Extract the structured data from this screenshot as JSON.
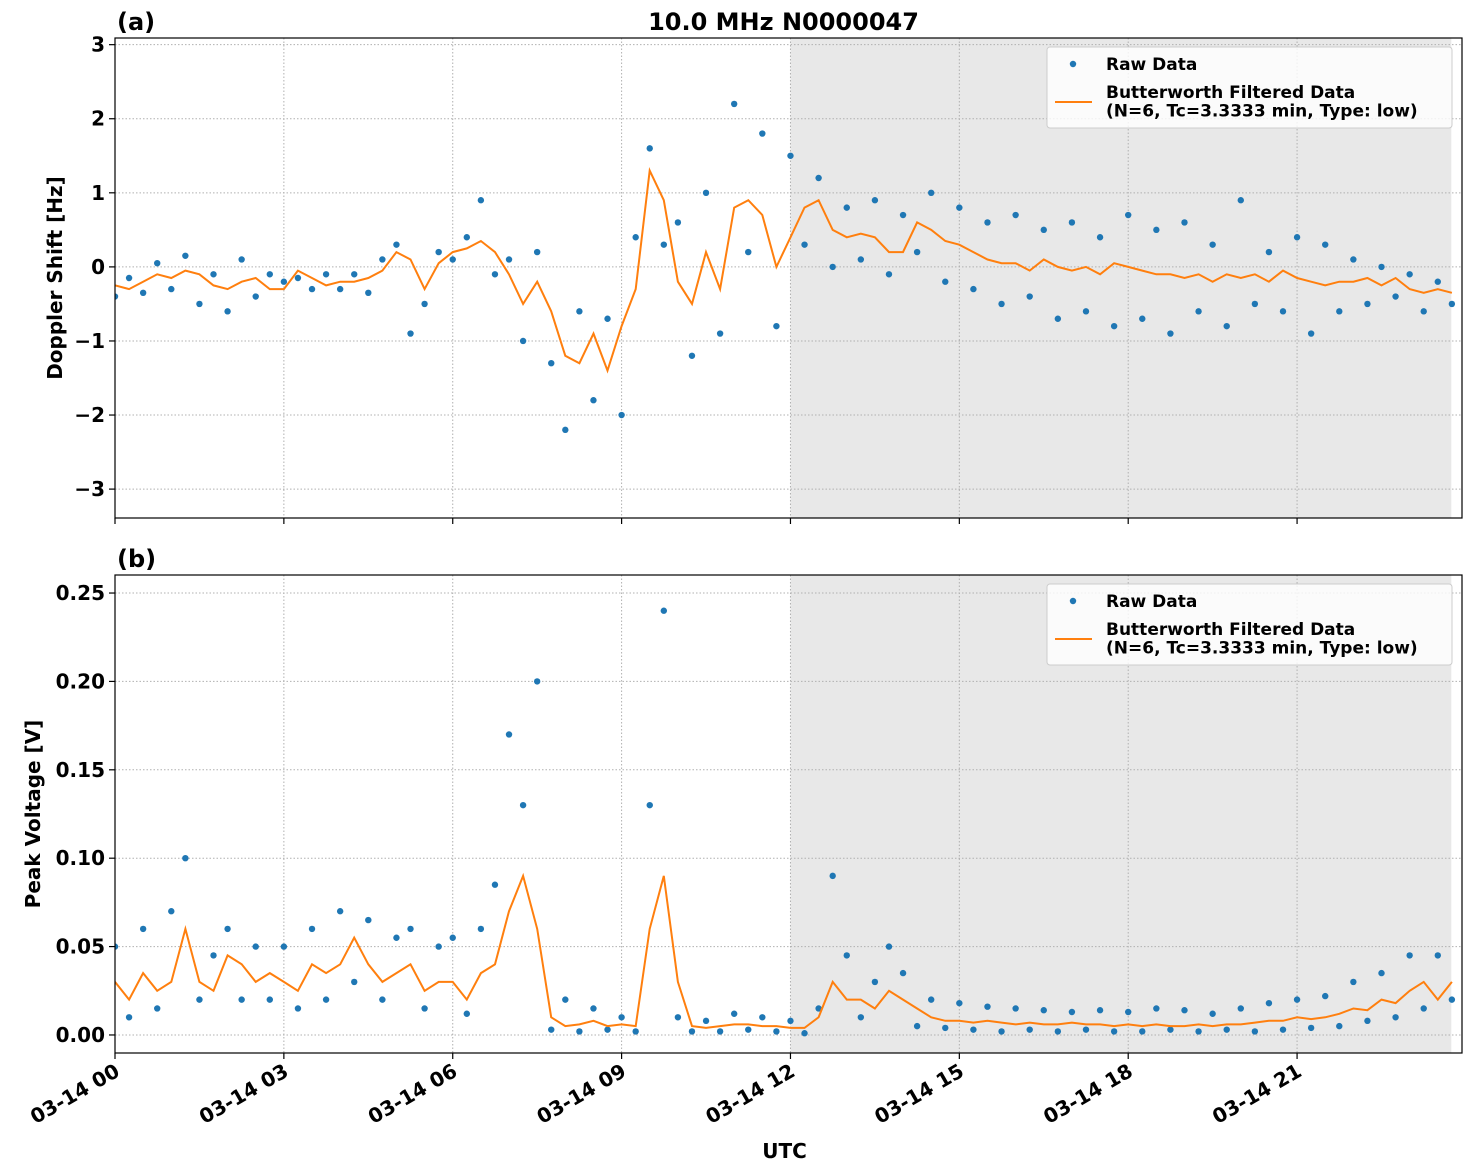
{
  "chart_data": [
    {
      "type": "line",
      "title": "10.0 MHz N0000047",
      "panel": "(a)",
      "ylabel": "Doppler Shift [Hz]",
      "x": [
        0,
        0.25,
        0.5,
        0.75,
        1,
        1.25,
        1.5,
        1.75,
        2,
        2.25,
        2.5,
        2.75,
        3,
        3.25,
        3.5,
        3.75,
        4,
        4.25,
        4.5,
        4.75,
        5,
        5.25,
        5.5,
        5.75,
        6,
        6.25,
        6.5,
        6.75,
        7,
        7.25,
        7.5,
        7.75,
        8,
        8.25,
        8.5,
        8.75,
        9,
        9.25,
        9.5,
        9.75,
        10,
        10.25,
        10.5,
        10.75,
        11,
        11.25,
        11.5,
        11.75,
        12,
        12.25,
        12.5,
        12.75,
        13,
        13.25,
        13.5,
        13.75,
        14,
        14.25,
        14.5,
        14.75,
        15,
        15.25,
        15.5,
        15.75,
        16,
        16.25,
        16.5,
        16.75,
        17,
        17.25,
        17.5,
        17.75,
        18,
        18.25,
        18.5,
        18.75,
        19,
        19.25,
        19.5,
        19.75,
        20,
        20.25,
        20.5,
        20.75,
        21,
        21.25,
        21.5,
        21.75,
        22,
        22.25,
        22.5,
        22.75,
        23,
        23.25,
        23.5,
        23.75
      ],
      "series": [
        {
          "name": "Raw Data",
          "color": "#1f77b4",
          "marker": "dot",
          "values": [
            -0.4,
            -0.15,
            -0.35,
            0.05,
            -0.3,
            0.15,
            -0.5,
            -0.1,
            -0.6,
            0.1,
            -0.4,
            -0.1,
            -0.2,
            -0.15,
            -0.3,
            -0.1,
            -0.3,
            -0.1,
            -0.35,
            0.1,
            0.3,
            -0.9,
            -0.5,
            0.2,
            0.1,
            0.4,
            0.9,
            -0.1,
            0.1,
            -1.0,
            0.2,
            -1.3,
            -2.2,
            -0.6,
            -1.8,
            -0.7,
            -2.0,
            0.4,
            1.6,
            0.3,
            0.6,
            -1.2,
            1.0,
            -0.9,
            2.2,
            0.2,
            1.8,
            -0.8,
            1.5,
            0.3,
            1.2,
            0.0,
            0.8,
            0.1,
            0.9,
            -0.1,
            0.7,
            0.2,
            1.0,
            -0.2,
            0.8,
            -0.3,
            0.6,
            -0.5,
            0.7,
            -0.4,
            0.5,
            -0.7,
            0.6,
            -0.6,
            0.4,
            -0.8,
            0.7,
            -0.7,
            0.5,
            -0.9,
            0.6,
            -0.6,
            0.3,
            -0.8,
            0.9,
            -0.5,
            0.2,
            -0.6,
            0.4,
            -0.9,
            0.3,
            -0.6,
            0.1,
            -0.5,
            0.0,
            -0.4,
            -0.1,
            -0.6,
            -0.2,
            -0.5
          ]
        },
        {
          "name": "Butterworth Filtered Data\n(N=6, Tc=3.3333 min, Type: low)",
          "color": "#ff7f0e",
          "marker": "line",
          "values": [
            -0.25,
            -0.3,
            -0.2,
            -0.1,
            -0.15,
            -0.05,
            -0.1,
            -0.25,
            -0.3,
            -0.2,
            -0.15,
            -0.3,
            -0.3,
            -0.05,
            -0.15,
            -0.25,
            -0.2,
            -0.2,
            -0.15,
            -0.05,
            0.2,
            0.1,
            -0.3,
            0.05,
            0.2,
            0.25,
            0.35,
            0.2,
            -0.1,
            -0.5,
            -0.2,
            -0.6,
            -1.2,
            -1.3,
            -0.9,
            -1.4,
            -0.8,
            -0.3,
            1.3,
            0.9,
            -0.2,
            -0.5,
            0.2,
            -0.3,
            0.8,
            0.9,
            0.7,
            0.0,
            0.4,
            0.8,
            0.9,
            0.5,
            0.4,
            0.45,
            0.4,
            0.2,
            0.2,
            0.6,
            0.5,
            0.35,
            0.3,
            0.2,
            0.1,
            0.05,
            0.05,
            -0.05,
            0.1,
            0.0,
            -0.05,
            0.0,
            -0.1,
            0.05,
            0.0,
            -0.05,
            -0.1,
            -0.1,
            -0.15,
            -0.1,
            -0.2,
            -0.1,
            -0.15,
            -0.1,
            -0.2,
            -0.05,
            -0.15,
            -0.2,
            -0.25,
            -0.2,
            -0.2,
            -0.15,
            -0.25,
            -0.15,
            -0.3,
            -0.35,
            -0.3,
            -0.35
          ]
        }
      ],
      "xlim": [
        0,
        23.93
      ],
      "xticks": [
        0,
        3,
        6,
        9,
        12,
        15,
        18,
        21
      ],
      "ylim": [
        -3.39,
        3.09
      ],
      "yticks": [
        {
          "value": -3,
          "label": "−3"
        },
        {
          "value": -2,
          "label": "−2"
        },
        {
          "value": -1,
          "label": "−1"
        },
        0,
        1,
        2,
        3
      ],
      "shade": [
        12,
        23.74
      ],
      "grid": true,
      "legend": "upper right"
    },
    {
      "type": "line",
      "panel": "(b)",
      "ylabel": "Peak Voltage [V]",
      "xlabel": "UTC",
      "x": [
        0,
        0.25,
        0.5,
        0.75,
        1,
        1.25,
        1.5,
        1.75,
        2,
        2.25,
        2.5,
        2.75,
        3,
        3.25,
        3.5,
        3.75,
        4,
        4.25,
        4.5,
        4.75,
        5,
        5.25,
        5.5,
        5.75,
        6,
        6.25,
        6.5,
        6.75,
        7,
        7.25,
        7.5,
        7.75,
        8,
        8.25,
        8.5,
        8.75,
        9,
        9.25,
        9.5,
        9.75,
        10,
        10.25,
        10.5,
        10.75,
        11,
        11.25,
        11.5,
        11.75,
        12,
        12.25,
        12.5,
        12.75,
        13,
        13.25,
        13.5,
        13.75,
        14,
        14.25,
        14.5,
        14.75,
        15,
        15.25,
        15.5,
        15.75,
        16,
        16.25,
        16.5,
        16.75,
        17,
        17.25,
        17.5,
        17.75,
        18,
        18.25,
        18.5,
        18.75,
        19,
        19.25,
        19.5,
        19.75,
        20,
        20.25,
        20.5,
        20.75,
        21,
        21.25,
        21.5,
        21.75,
        22,
        22.25,
        22.5,
        22.75,
        23,
        23.25,
        23.5,
        23.75
      ],
      "series": [
        {
          "name": "Raw Data",
          "color": "#1f77b4",
          "marker": "dot",
          "values": [
            0.05,
            0.01,
            0.06,
            0.015,
            0.07,
            0.1,
            0.02,
            0.045,
            0.06,
            0.02,
            0.05,
            0.02,
            0.05,
            0.015,
            0.06,
            0.02,
            0.07,
            0.03,
            0.065,
            0.02,
            0.055,
            0.06,
            0.015,
            0.05,
            0.055,
            0.012,
            0.06,
            0.085,
            0.17,
            0.13,
            0.2,
            0.003,
            0.02,
            0.002,
            0.015,
            0.003,
            0.01,
            0.002,
            0.13,
            0.24,
            0.01,
            0.002,
            0.008,
            0.002,
            0.012,
            0.003,
            0.01,
            0.002,
            0.008,
            0.001,
            0.015,
            0.09,
            0.045,
            0.01,
            0.03,
            0.05,
            0.035,
            0.005,
            0.02,
            0.004,
            0.018,
            0.003,
            0.016,
            0.002,
            0.015,
            0.003,
            0.014,
            0.002,
            0.013,
            0.003,
            0.014,
            0.002,
            0.013,
            0.002,
            0.015,
            0.003,
            0.014,
            0.002,
            0.012,
            0.003,
            0.015,
            0.002,
            0.018,
            0.003,
            0.02,
            0.004,
            0.022,
            0.005,
            0.03,
            0.008,
            0.035,
            0.01,
            0.045,
            0.015,
            0.045,
            0.02
          ]
        },
        {
          "name": "Butterworth Filtered Data\n(N=6, Tc=3.3333 min, Type: low)",
          "color": "#ff7f0e",
          "marker": "line",
          "values": [
            0.03,
            0.02,
            0.035,
            0.025,
            0.03,
            0.06,
            0.03,
            0.025,
            0.045,
            0.04,
            0.03,
            0.035,
            0.03,
            0.025,
            0.04,
            0.035,
            0.04,
            0.055,
            0.04,
            0.03,
            0.035,
            0.04,
            0.025,
            0.03,
            0.03,
            0.02,
            0.035,
            0.04,
            0.07,
            0.09,
            0.06,
            0.01,
            0.005,
            0.006,
            0.008,
            0.005,
            0.006,
            0.005,
            0.06,
            0.09,
            0.03,
            0.005,
            0.004,
            0.005,
            0.006,
            0.006,
            0.005,
            0.005,
            0.004,
            0.004,
            0.01,
            0.03,
            0.02,
            0.02,
            0.015,
            0.025,
            0.02,
            0.015,
            0.01,
            0.008,
            0.008,
            0.007,
            0.008,
            0.007,
            0.006,
            0.007,
            0.006,
            0.006,
            0.007,
            0.006,
            0.006,
            0.005,
            0.006,
            0.005,
            0.006,
            0.005,
            0.005,
            0.006,
            0.005,
            0.006,
            0.006,
            0.007,
            0.008,
            0.008,
            0.01,
            0.009,
            0.01,
            0.012,
            0.015,
            0.014,
            0.02,
            0.018,
            0.025,
            0.03,
            0.02,
            0.03
          ]
        }
      ],
      "xlim": [
        0,
        23.93
      ],
      "xticks": [
        {
          "value": 0,
          "label": "03-14 00"
        },
        {
          "value": 3,
          "label": "03-14 03"
        },
        {
          "value": 6,
          "label": "03-14 06"
        },
        {
          "value": 9,
          "label": "03-14 09"
        },
        {
          "value": 12,
          "label": "03-14 12"
        },
        {
          "value": 15,
          "label": "03-14 15"
        },
        {
          "value": 18,
          "label": "03-14 18"
        },
        {
          "value": 21,
          "label": "03-14 21"
        }
      ],
      "ylim": [
        -0.0102,
        0.2602
      ],
      "yticks": [
        {
          "value": 0,
          "label": "0.00"
        },
        {
          "value": 0.05,
          "label": "0.05"
        },
        {
          "value": 0.1,
          "label": "0.10"
        },
        {
          "value": 0.15,
          "label": "0.15"
        },
        {
          "value": 0.2,
          "label": "0.20"
        },
        {
          "value": 0.25,
          "label": "0.25"
        }
      ],
      "shade": [
        12,
        23.74
      ],
      "grid": true,
      "legend": "upper right"
    }
  ]
}
